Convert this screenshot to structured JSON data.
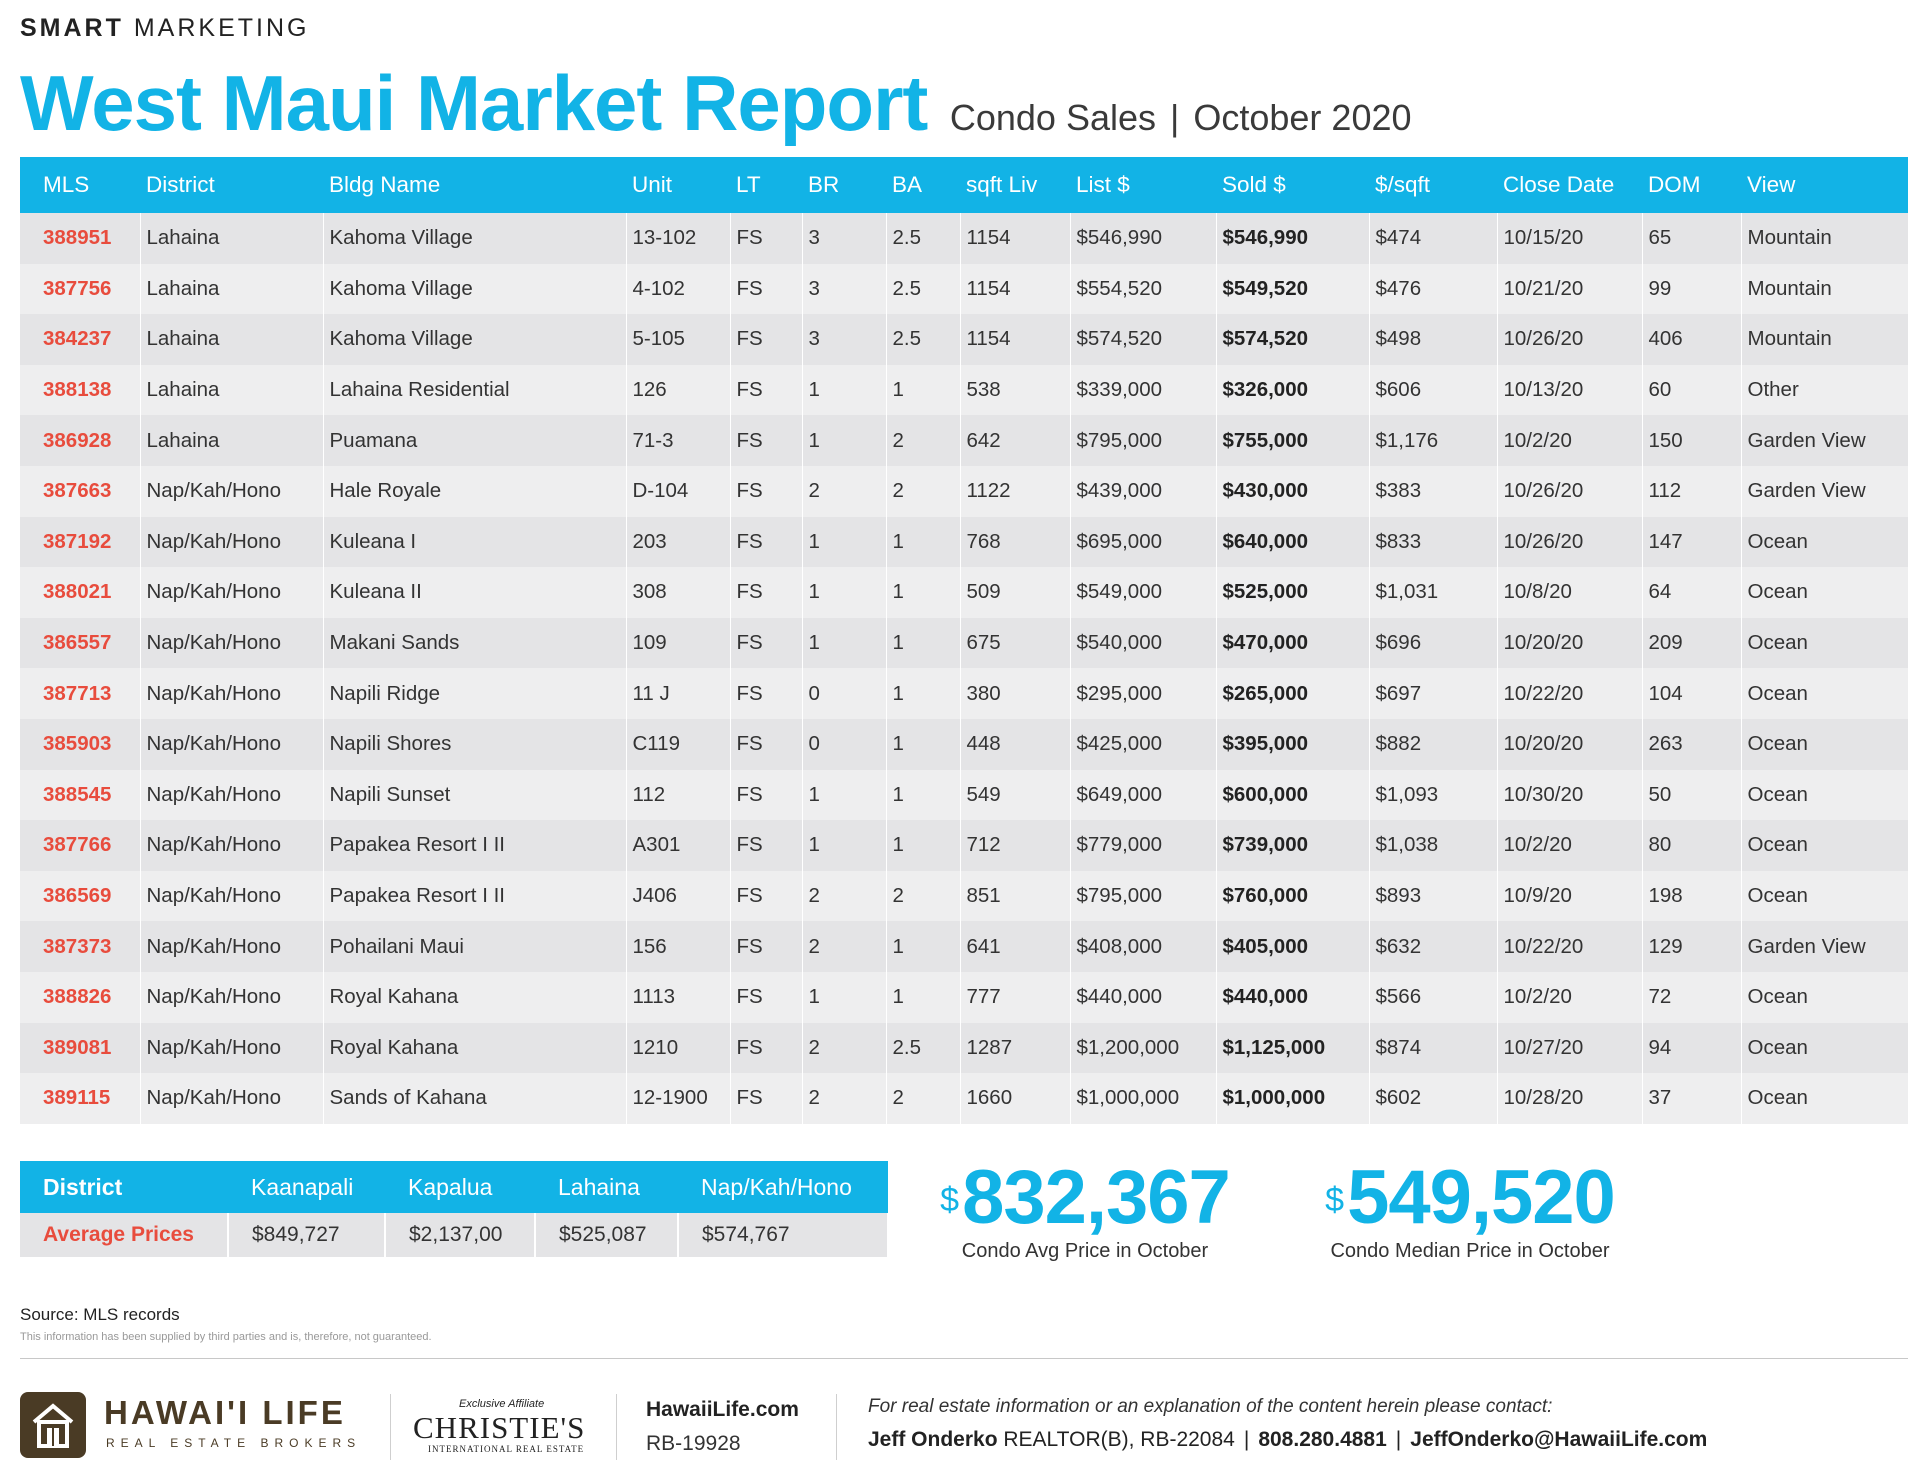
{
  "brand": {
    "bold": "SMART",
    "rest": "MARKETING"
  },
  "title": "West Maui Market Report",
  "subtitle": {
    "type": "Condo Sales",
    "separator": "|",
    "period": "October 2020"
  },
  "colors": {
    "accent": "#12b3e6",
    "mls_red": "#e84c3d",
    "logo_brown": "#4a3b25"
  },
  "listings": {
    "headers": [
      "MLS",
      "District",
      "Bldg Name",
      "Unit",
      "LT",
      "BR",
      "BA",
      "sqft Liv",
      "List $",
      "Sold $",
      "$/sqft",
      "Close Date",
      "DOM",
      "View"
    ],
    "rows": [
      [
        "388951",
        "Lahaina",
        "Kahoma Village",
        "13-102",
        "FS",
        "3",
        "2.5",
        "1154",
        "$546,990",
        "$546,990",
        "$474",
        "10/15/20",
        "65",
        "Mountain"
      ],
      [
        "387756",
        "Lahaina",
        "Kahoma Village",
        "4-102",
        "FS",
        "3",
        "2.5",
        "1154",
        "$554,520",
        "$549,520",
        "$476",
        "10/21/20",
        "99",
        "Mountain"
      ],
      [
        "384237",
        "Lahaina",
        "Kahoma Village",
        "5-105",
        "FS",
        "3",
        "2.5",
        "1154",
        "$574,520",
        "$574,520",
        "$498",
        "10/26/20",
        "406",
        "Mountain"
      ],
      [
        "388138",
        "Lahaina",
        "Lahaina Residential",
        "126",
        "FS",
        "1",
        "1",
        "538",
        "$339,000",
        "$326,000",
        "$606",
        "10/13/20",
        "60",
        "Other"
      ],
      [
        "386928",
        "Lahaina",
        "Puamana",
        "71-3",
        "FS",
        "1",
        "2",
        "642",
        "$795,000",
        "$755,000",
        "$1,176",
        "10/2/20",
        "150",
        "Garden View"
      ],
      [
        "387663",
        "Nap/Kah/Hono",
        "Hale Royale",
        "D-104",
        "FS",
        "2",
        "2",
        "1122",
        "$439,000",
        "$430,000",
        "$383",
        "10/26/20",
        "112",
        "Garden View"
      ],
      [
        "387192",
        "Nap/Kah/Hono",
        "Kuleana I",
        "203",
        "FS",
        "1",
        "1",
        "768",
        "$695,000",
        "$640,000",
        "$833",
        "10/26/20",
        "147",
        "Ocean"
      ],
      [
        "388021",
        "Nap/Kah/Hono",
        "Kuleana II",
        "308",
        "FS",
        "1",
        "1",
        "509",
        "$549,000",
        "$525,000",
        "$1,031",
        "10/8/20",
        "64",
        "Ocean"
      ],
      [
        "386557",
        "Nap/Kah/Hono",
        "Makani Sands",
        "109",
        "FS",
        "1",
        "1",
        "675",
        "$540,000",
        "$470,000",
        "$696",
        "10/20/20",
        "209",
        "Ocean"
      ],
      [
        "387713",
        "Nap/Kah/Hono",
        "Napili Ridge",
        "11 J",
        "FS",
        "0",
        "1",
        "380",
        "$295,000",
        "$265,000",
        "$697",
        "10/22/20",
        "104",
        "Ocean"
      ],
      [
        "385903",
        "Nap/Kah/Hono",
        "Napili Shores",
        "C119",
        "FS",
        "0",
        "1",
        "448",
        "$425,000",
        "$395,000",
        "$882",
        "10/20/20",
        "263",
        "Ocean"
      ],
      [
        "388545",
        "Nap/Kah/Hono",
        "Napili Sunset",
        "112",
        "FS",
        "1",
        "1",
        "549",
        "$649,000",
        "$600,000",
        "$1,093",
        "10/30/20",
        "50",
        "Ocean"
      ],
      [
        "387766",
        "Nap/Kah/Hono",
        "Papakea Resort I II",
        "A301",
        "FS",
        "1",
        "1",
        "712",
        "$779,000",
        "$739,000",
        "$1,038",
        "10/2/20",
        "80",
        "Ocean"
      ],
      [
        "386569",
        "Nap/Kah/Hono",
        "Papakea Resort I II",
        "J406",
        "FS",
        "2",
        "2",
        "851",
        "$795,000",
        "$760,000",
        "$893",
        "10/9/20",
        "198",
        "Ocean"
      ],
      [
        "387373",
        "Nap/Kah/Hono",
        "Pohailani Maui",
        "156",
        "FS",
        "2",
        "1",
        "641",
        "$408,000",
        "$405,000",
        "$632",
        "10/22/20",
        "129",
        "Garden View"
      ],
      [
        "388826",
        "Nap/Kah/Hono",
        "Royal Kahana",
        "1113",
        "FS",
        "1",
        "1",
        "777",
        "$440,000",
        "$440,000",
        "$566",
        "10/2/20",
        "72",
        "Ocean"
      ],
      [
        "389081",
        "Nap/Kah/Hono",
        "Royal Kahana",
        "1210",
        "FS",
        "2",
        "2.5",
        "1287",
        "$1,200,000",
        "$1,125,000",
        "$874",
        "10/27/20",
        "94",
        "Ocean"
      ],
      [
        "389115",
        "Nap/Kah/Hono",
        "Sands of Kahana",
        "12-1900",
        "FS",
        "2",
        "2",
        "1660",
        "$1,000,000",
        "$1,000,000",
        "$602",
        "10/28/20",
        "37",
        "Ocean"
      ]
    ]
  },
  "averages": {
    "header_label": "District",
    "districts": [
      "Kaanapali",
      "Kapalua",
      "Lahaina",
      "Nap/Kah/Hono"
    ],
    "row_label": "Average Prices",
    "values": [
      "$849,727",
      "$2,137,00",
      "$525,087",
      "$574,767"
    ]
  },
  "stats": {
    "currency_symbol": "$",
    "avg_value": "832,367",
    "avg_label": "Condo Avg Price in October",
    "median_value": "549,520",
    "median_label": "Condo Median Price in October"
  },
  "source": "Source: MLS records",
  "disclaimer": "This information has been supplied by third parties and is, therefore, not guaranteed.",
  "footer": {
    "company": "HAWAI'I LIFE",
    "company_sub": "REAL ESTATE BROKERS",
    "affiliate_top": "Exclusive Affiliate",
    "affiliate_name": "CHRISTIE'S",
    "affiliate_sub": "INTERNATIONAL REAL ESTATE",
    "website": "HawaiiLife.com",
    "license": "RB-19928",
    "contact_note": "For real estate information or an explanation of the content herein please contact:",
    "agent_name": "Jeff Onderko",
    "agent_title": "REALTOR(B), RB-22084",
    "separator": "|",
    "phone": "808.280.4881",
    "email": "JeffOnderko@HawaiiLife.com"
  }
}
